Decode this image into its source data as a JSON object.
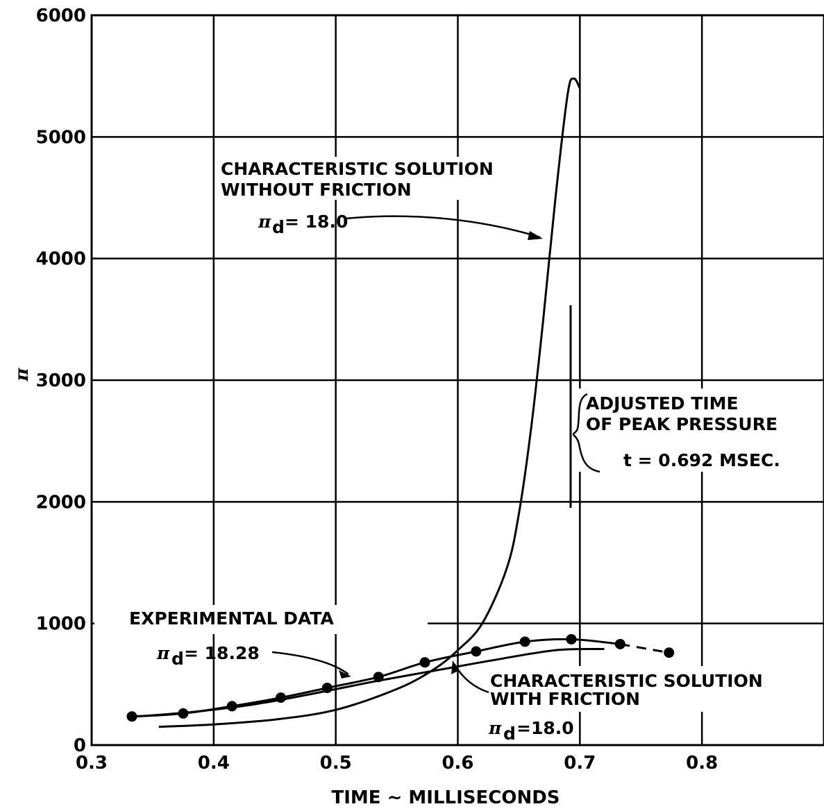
{
  "chart_data": {
    "type": "line",
    "title": "",
    "xlabel": "TIME ∼ MILLISECONDS",
    "ylabel": "π",
    "xlim": [
      0.3,
      0.9
    ],
    "ylim": [
      0,
      6000
    ],
    "x_ticks": [
      "0.3",
      "0.4",
      "0.5",
      "0.6",
      "0.7",
      "0.8"
    ],
    "y_ticks": [
      "0",
      "1000",
      "2000",
      "3000",
      "4000",
      "5000",
      "6000"
    ],
    "grid": true,
    "series": [
      {
        "name": "CHARACTERISTIC SOLUTION WITHOUT FRICTION",
        "x": [
          0.355,
          0.4,
          0.45,
          0.5,
          0.55,
          0.58,
          0.6,
          0.62,
          0.64,
          0.65,
          0.66,
          0.67,
          0.68,
          0.69,
          0.695,
          0.7
        ],
        "y": [
          150,
          170,
          210,
          290,
          460,
          620,
          780,
          1000,
          1450,
          1900,
          2600,
          3500,
          4500,
          5350,
          5480,
          5400
        ]
      },
      {
        "name": "CHARACTERISTIC SOLUTION WITH FRICTION",
        "x": [
          0.33,
          0.38,
          0.43,
          0.48,
          0.53,
          0.58,
          0.63,
          0.68,
          0.72
        ],
        "y": [
          230,
          270,
          330,
          420,
          520,
          610,
          700,
          780,
          790
        ]
      },
      {
        "name": "EXPERIMENTAL DATA",
        "x": [
          0.333,
          0.375,
          0.415,
          0.455,
          0.493,
          0.535,
          0.573,
          0.615,
          0.655,
          0.693,
          0.733,
          0.773
        ],
        "y": [
          235,
          260,
          320,
          390,
          470,
          560,
          680,
          770,
          850,
          870,
          830,
          760
        ]
      }
    ],
    "annotations": {
      "no_friction_label_1": "CHARACTERISTIC  SOLUTION",
      "no_friction_label_2": "WITHOUT  FRICTION",
      "no_friction_pi": "= 18.0",
      "experimental_label": "EXPERIMENTAL  DATA",
      "experimental_pi": "= 18.28",
      "friction_label_1": "CHARACTERISTIC  SOLUTION",
      "friction_label_2": "WITH  FRICTION",
      "friction_pi": "=18.0",
      "pi_symbol": "π",
      "pi_subscript": "d",
      "adjusted_1": "ADJUSTED  TIME",
      "adjusted_2": "OF  PEAK  PRESSURE",
      "adjusted_3": "t  = 0.692  MSEC."
    }
  }
}
